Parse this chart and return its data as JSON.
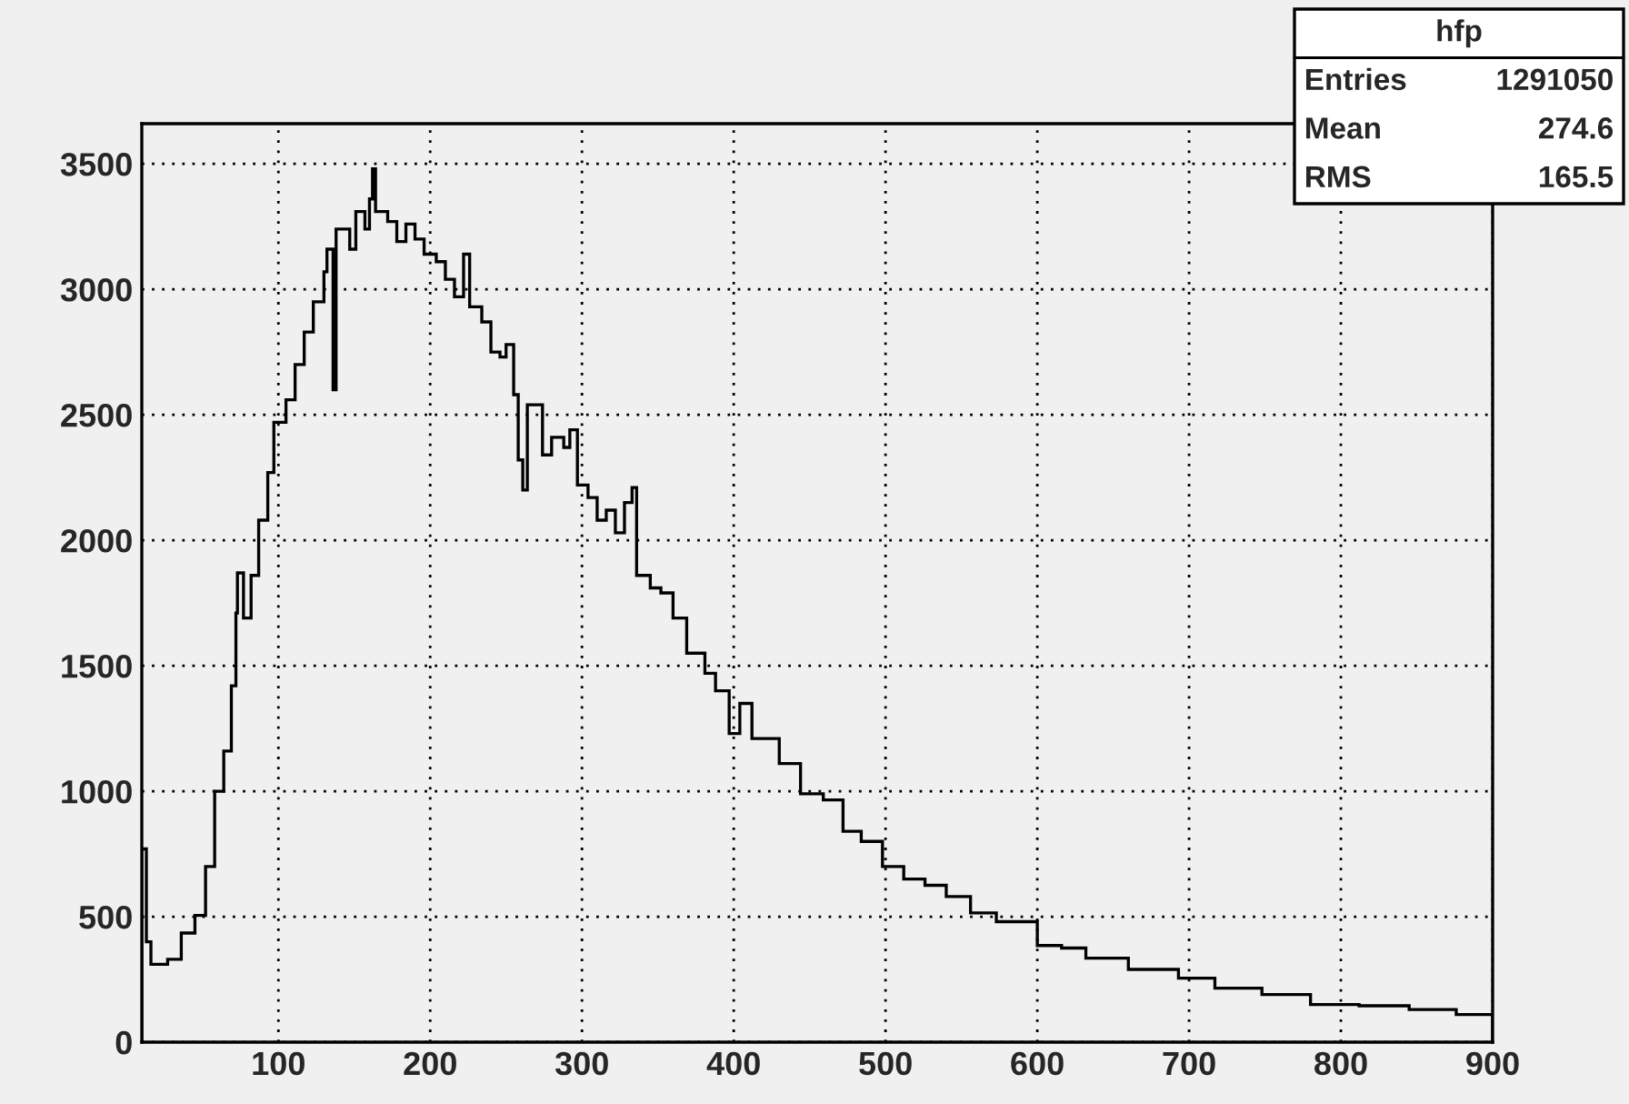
{
  "chart_data": {
    "type": "histogram",
    "title": "hfp",
    "bins": [
      10,
      13,
      16,
      27,
      36,
      45,
      52,
      58,
      64,
      69,
      72,
      73,
      77,
      82,
      87,
      93,
      97,
      105,
      111,
      117,
      123,
      130,
      132,
      136,
      138,
      147,
      151,
      157,
      160,
      162,
      164,
      172,
      178,
      184,
      190,
      196,
      204,
      210,
      216,
      222,
      226,
      234,
      240,
      246,
      250,
      255,
      258,
      261,
      264,
      270,
      274,
      280,
      288,
      292,
      297,
      304,
      310,
      316,
      322,
      328,
      333,
      336,
      345,
      352,
      360,
      369,
      381,
      388,
      397,
      404,
      412,
      430,
      444,
      459,
      472,
      484,
      498,
      512,
      526,
      540,
      556,
      573,
      592,
      600,
      616,
      632,
      660,
      693,
      717,
      748,
      780,
      812,
      845,
      876,
      900
    ],
    "values": [
      770,
      400,
      310,
      330,
      435,
      505,
      700,
      1000,
      1160,
      1420,
      1710,
      1870,
      1690,
      1860,
      2080,
      2270,
      2470,
      2560,
      2700,
      2830,
      2950,
      3070,
      3160,
      2600,
      3240,
      3160,
      3310,
      3240,
      3360,
      3480,
      3310,
      3270,
      3190,
      3260,
      3200,
      3140,
      3110,
      3040,
      2970,
      3140,
      2930,
      2870,
      2750,
      2730,
      2780,
      2580,
      2320,
      2200,
      2540,
      2540,
      2340,
      2410,
      2370,
      2440,
      2220,
      2170,
      2080,
      2120,
      2030,
      2150,
      2210,
      1860,
      1810,
      1790,
      1690,
      1550,
      1470,
      1400,
      1230,
      1350,
      1210,
      1110,
      990,
      965,
      840,
      800,
      700,
      650,
      625,
      580,
      515,
      480,
      480,
      385,
      375,
      335,
      290,
      255,
      215,
      190,
      150,
      145,
      130,
      110
    ],
    "color": "#000000",
    "xlim": [
      10,
      900
    ],
    "xticks": [
      100,
      200,
      300,
      400,
      500,
      600,
      700,
      800,
      900
    ],
    "ylim": [
      0,
      3660
    ],
    "yticks": [
      0,
      500,
      1000,
      1500,
      2000,
      2500,
      3000,
      3500
    ],
    "grid": true,
    "annotations": [
      "Entries",
      "1291050",
      "Mean",
      "274.6",
      "RMS",
      "165.5"
    ]
  }
}
